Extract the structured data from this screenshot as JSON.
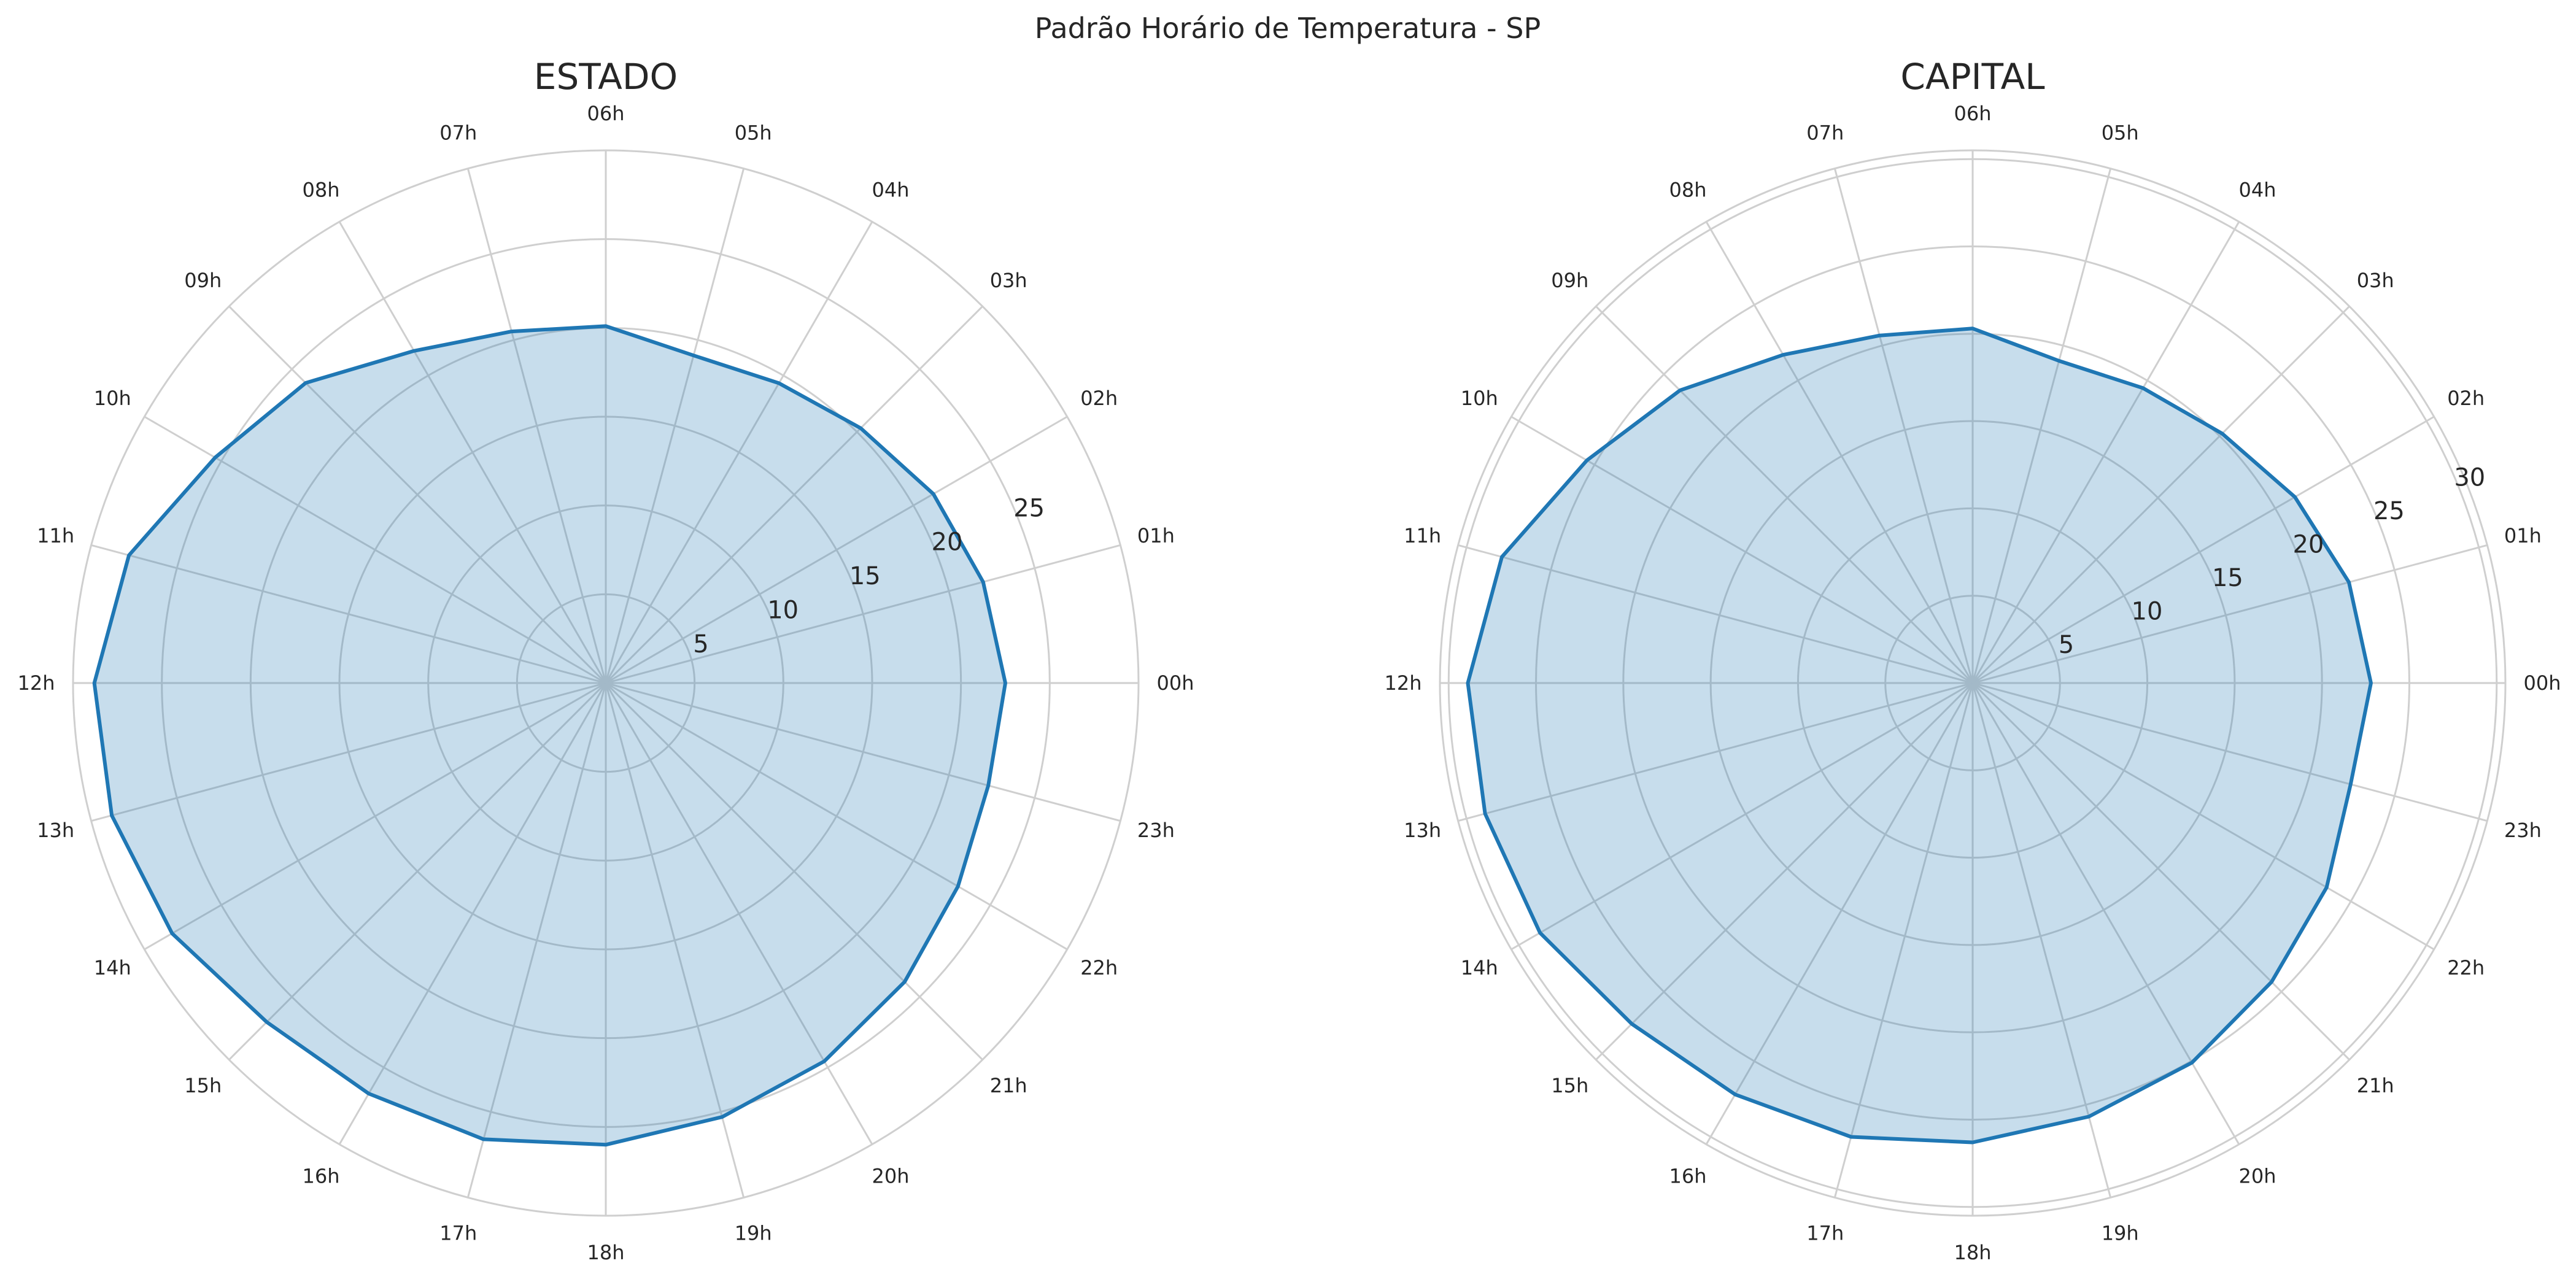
{
  "figure": {
    "title": "Padrão Horário de Temperatura - SP"
  },
  "chart_data": [
    {
      "type": "radar",
      "title": "ESTADO",
      "categories": [
        "00h",
        "01h",
        "02h",
        "03h",
        "04h",
        "05h",
        "06h",
        "07h",
        "08h",
        "09h",
        "10h",
        "11h",
        "12h",
        "13h",
        "14h",
        "15h",
        "16h",
        "17h",
        "18h",
        "19h",
        "20h",
        "21h",
        "22h",
        "23h"
      ],
      "values": [
        22.5,
        22.0,
        21.3,
        20.3,
        19.5,
        19.1,
        20.1,
        20.5,
        21.6,
        23.9,
        25.4,
        27.8,
        28.8,
        28.8,
        28.2,
        27.0,
        26.7,
        26.6,
        26.0,
        25.3,
        24.6,
        23.8,
        22.9,
        22.3
      ],
      "rticks": [
        5,
        10,
        15,
        20,
        25
      ],
      "rlim": [
        0,
        30
      ],
      "color": "#1f77b4",
      "grid": true
    },
    {
      "type": "radar",
      "title": "CAPITAL",
      "categories": [
        "00h",
        "01h",
        "02h",
        "03h",
        "04h",
        "05h",
        "06h",
        "07h",
        "08h",
        "09h",
        "10h",
        "11h",
        "12h",
        "13h",
        "14h",
        "15h",
        "16h",
        "17h",
        "18h",
        "19h",
        "20h",
        "21h",
        "22h",
        "23h"
      ],
      "values": [
        22.8,
        22.3,
        21.3,
        20.2,
        19.5,
        19.1,
        20.3,
        20.6,
        21.7,
        23.7,
        25.5,
        27.9,
        28.9,
        28.9,
        28.6,
        27.6,
        27.2,
        26.9,
        26.3,
        25.7,
        25.1,
        24.2,
        23.4,
        22.4
      ],
      "rticks": [
        5,
        10,
        15,
        20,
        25,
        30
      ],
      "rlim": [
        0,
        30.5
      ],
      "color": "#1f77b4",
      "grid": true
    }
  ]
}
